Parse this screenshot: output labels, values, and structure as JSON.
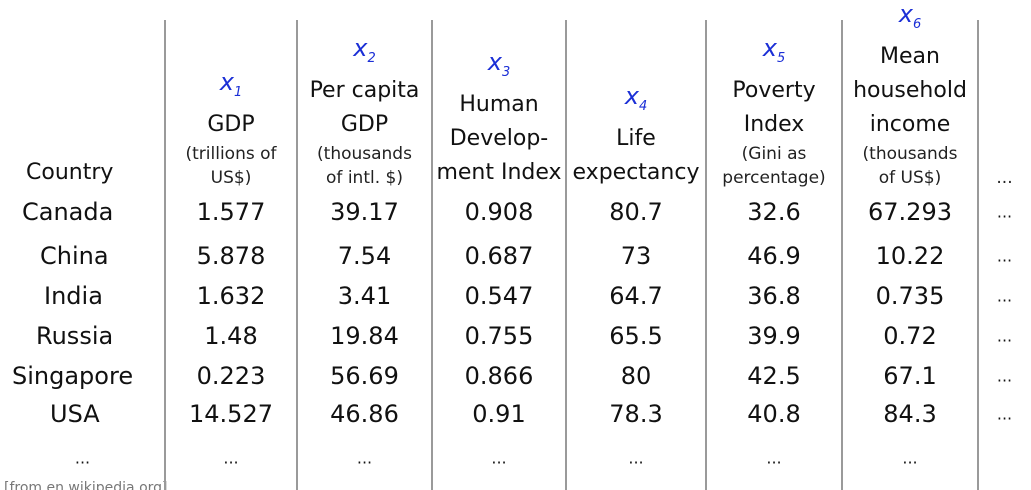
{
  "table": {
    "columns": [
      {
        "main": [
          "Country"
        ],
        "sub": [],
        "annotation": null
      },
      {
        "main": [
          "GDP"
        ],
        "sub": [
          "(trillions of",
          "US$)"
        ],
        "annotation": {
          "var": "x",
          "sub": "1"
        }
      },
      {
        "main": [
          "Per capita",
          "GDP"
        ],
        "sub": [
          "(thousands",
          "of intl. $)"
        ],
        "annotation": {
          "var": "x",
          "sub": "2"
        }
      },
      {
        "main": [
          "Human",
          "Develop-",
          "ment Index"
        ],
        "sub": [],
        "annotation": {
          "var": "x",
          "sub": "3"
        }
      },
      {
        "main": [
          "Life",
          "expectancy"
        ],
        "sub": [],
        "annotation": {
          "var": "x",
          "sub": "4"
        }
      },
      {
        "main": [
          "Poverty",
          "Index"
        ],
        "sub": [
          "(Gini as",
          "percentage)"
        ],
        "annotation": {
          "var": "x",
          "sub": "5"
        }
      },
      {
        "main": [
          "Mean",
          "household",
          "income"
        ],
        "sub": [
          "(thousands",
          "of US$)"
        ],
        "annotation": {
          "var": "x",
          "sub": "6"
        }
      },
      {
        "main": [],
        "sub": [
          "..."
        ],
        "annotation": null
      }
    ],
    "rows": [
      [
        "Canada",
        "1.577",
        "39.17",
        "0.908",
        "80.7",
        "32.6",
        "67.293",
        "..."
      ],
      [
        "China",
        "5.878",
        "7.54",
        "0.687",
        "73",
        "46.9",
        "10.22",
        "..."
      ],
      [
        "India",
        "1.632",
        "3.41",
        "0.547",
        "64.7",
        "36.8",
        "0.735",
        "..."
      ],
      [
        "Russia",
        "1.48",
        "19.84",
        "0.755",
        "65.5",
        "39.9",
        "0.72",
        "..."
      ],
      [
        "Singapore",
        "0.223",
        "56.69",
        "0.866",
        "80",
        "42.5",
        "67.1",
        "..."
      ],
      [
        "USA",
        "14.527",
        "46.86",
        "0.91",
        "78.3",
        "40.8",
        "84.3",
        "..."
      ],
      [
        "...",
        "...",
        "...",
        "...",
        "...",
        "...",
        "...",
        null
      ]
    ]
  },
  "source": "[from en.wikipedia.org]"
}
